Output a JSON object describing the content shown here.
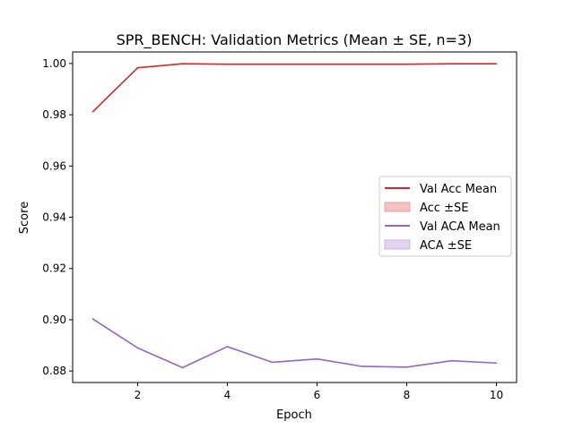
{
  "chart_data": {
    "type": "line",
    "title": "SPR_BENCH: Validation Metrics (Mean ± SE, n=3)",
    "xlabel": "Epoch",
    "ylabel": "Score",
    "xlim": [
      0.55,
      10.45
    ],
    "ylim": [
      0.8755,
      1.0045
    ],
    "x": [
      1,
      2,
      3,
      4,
      5,
      6,
      7,
      8,
      9,
      10
    ],
    "xticks": [
      2,
      4,
      6,
      8,
      10
    ],
    "yticks": [
      0.88,
      0.9,
      0.92,
      0.94,
      0.96,
      0.98,
      1.0
    ],
    "ytick_labels": [
      "0.88",
      "0.90",
      "0.92",
      "0.94",
      "0.96",
      "0.98",
      "1.00"
    ],
    "grid": false,
    "legend_placement": "center-right",
    "series": [
      {
        "name": "Val Acc Mean",
        "band_name": "Acc ±SE",
        "color": "#d62728",
        "band_color": "#f4c2c2",
        "values": [
          0.9812,
          0.9983,
          0.9999,
          0.9997,
          0.9997,
          0.9997,
          0.9997,
          0.9997,
          0.9999,
          0.9999
        ]
      },
      {
        "name": "Val ACA Mean",
        "band_name": "ACA ±SE",
        "color": "#9467bd",
        "band_color": "#e3d4ef",
        "values": [
          0.9003,
          0.889,
          0.8813,
          0.8895,
          0.8834,
          0.8847,
          0.8818,
          0.8815,
          0.884,
          0.8831
        ]
      }
    ]
  }
}
